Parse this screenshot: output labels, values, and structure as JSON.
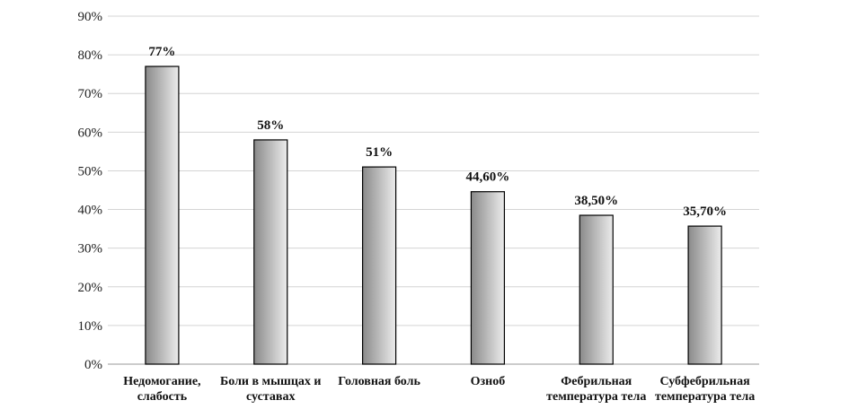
{
  "chart_data": {
    "type": "bar",
    "categories": [
      [
        "Недомогание,",
        "слабость"
      ],
      [
        "Боли в мышцах и",
        "суставах"
      ],
      [
        "Головная боль"
      ],
      [
        "Озноб"
      ],
      [
        "Фебрильная",
        "температура тела"
      ],
      [
        "Субфебрильная",
        "температура тела"
      ]
    ],
    "values": [
      77,
      58,
      51,
      44.6,
      38.5,
      35.7
    ],
    "data_labels": [
      "77%",
      "58%",
      "51%",
      "44,60%",
      "38,50%",
      "35,70%"
    ],
    "ylim": [
      0,
      90
    ],
    "yticks": [
      0,
      10,
      20,
      30,
      40,
      50,
      60,
      70,
      80,
      90
    ],
    "ytick_labels": [
      "0%",
      "10%",
      "20%",
      "30%",
      "40%",
      "50%",
      "60%",
      "70%",
      "80%",
      "90%"
    ],
    "grid": true,
    "legend": "none",
    "colors": {
      "bar_dark": "#8a8a8a",
      "bar_light": "#ececec",
      "bar_stroke": "#000000",
      "grid": "#d4d4d4"
    }
  }
}
